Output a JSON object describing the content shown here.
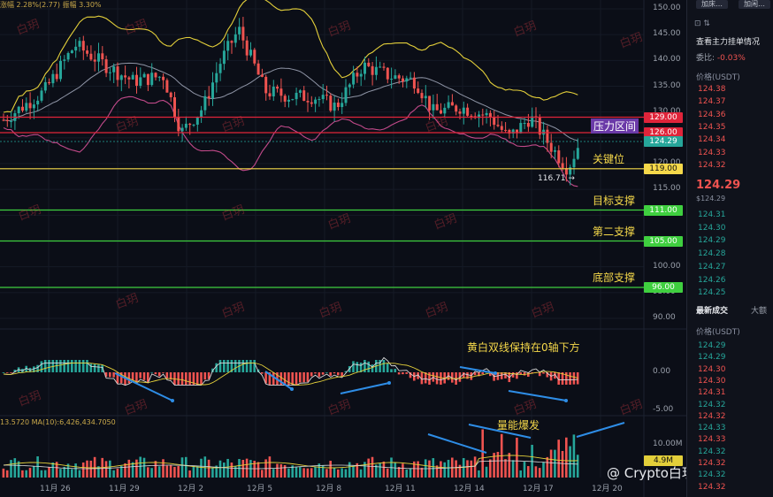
{
  "header": {
    "change_label": "涨幅 2.28%(2.77)",
    "amplitude_label": "振幅 3.30%"
  },
  "volume_info": "13.5720  MA(10):6,426,434.7050",
  "price_axis": [
    "150.00",
    "145.00",
    "140.00",
    "135.00",
    "130.00",
    "125.00",
    "120.00",
    "115.00",
    "110.00",
    "105.00",
    "100.00",
    "95.00",
    "90.00"
  ],
  "macd_axis": [
    "0.00",
    "-5.00"
  ],
  "volume_axis": [
    "10.00M"
  ],
  "x_labels": [
    "11月 26",
    "11月 29",
    "12月 2",
    "12月 5",
    "12月 8",
    "12月 11",
    "12月 14",
    "12月 17",
    "12月 20"
  ],
  "levels": [
    {
      "name": "pressure",
      "tag": "129.00",
      "label": "压力区间",
      "price": 129.0,
      "color": "#e0243a"
    },
    {
      "name": "pressure-low",
      "tag": "126.00",
      "label": "",
      "price": 126.0,
      "color": "#e0243a"
    },
    {
      "name": "current",
      "tag": "124.29",
      "label": "",
      "price": 124.29,
      "color": "#26a69a"
    },
    {
      "name": "key",
      "tag": "119.00",
      "label": "关键位",
      "price": 119.0,
      "color": "#f5d84a"
    },
    {
      "name": "target",
      "tag": "111.00",
      "label": "目标支撑",
      "price": 111.0,
      "color": "#3fcf3f"
    },
    {
      "name": "second",
      "tag": "105.00",
      "label": "第二支撑",
      "price": 105.0,
      "color": "#3fcf3f"
    },
    {
      "name": "bottom",
      "tag": "96.00",
      "label": "底部支撑",
      "price": 96.0,
      "color": "#3fcf3f"
    }
  ],
  "low_marker": "116.71",
  "volume_tag": "4.9M",
  "annotations": {
    "macd_note": "黄白双线保持在0轴下方",
    "volume_note": "量能爆发"
  },
  "watermark": "白玥",
  "logo": "@ Crypto白玥",
  "side": {
    "btn1": "加床…",
    "btn2": "加闲…",
    "orderbook_title": "查看主力挂单情况",
    "ratio_label": "委比:",
    "ratio_value": "-0.03%",
    "price_header": "价格(USDT)",
    "asks": [
      "124.38",
      "124.37",
      "124.36",
      "124.35",
      "124.34",
      "124.33",
      "124.32"
    ],
    "last_price": "124.29",
    "last_price_usd": "$124.29",
    "bids": [
      "124.31",
      "124.30",
      "124.29",
      "124.28",
      "124.27",
      "124.26",
      "124.25"
    ],
    "trades_tab": "最新成交",
    "big_tab": "大额",
    "trades_header": "价格(USDT)",
    "trades": [
      "124.29",
      "124.29",
      "124.30",
      "124.30",
      "124.31",
      "124.32",
      "124.32",
      "124.33",
      "124.33",
      "124.32",
      "124.32",
      "124.32",
      "124.32"
    ]
  },
  "colors": {
    "up": "#26a69a",
    "down": "#ef5350",
    "yellow": "#e3cf3a",
    "white": "#d8d8d8",
    "pink": "#c24a8a"
  }
}
